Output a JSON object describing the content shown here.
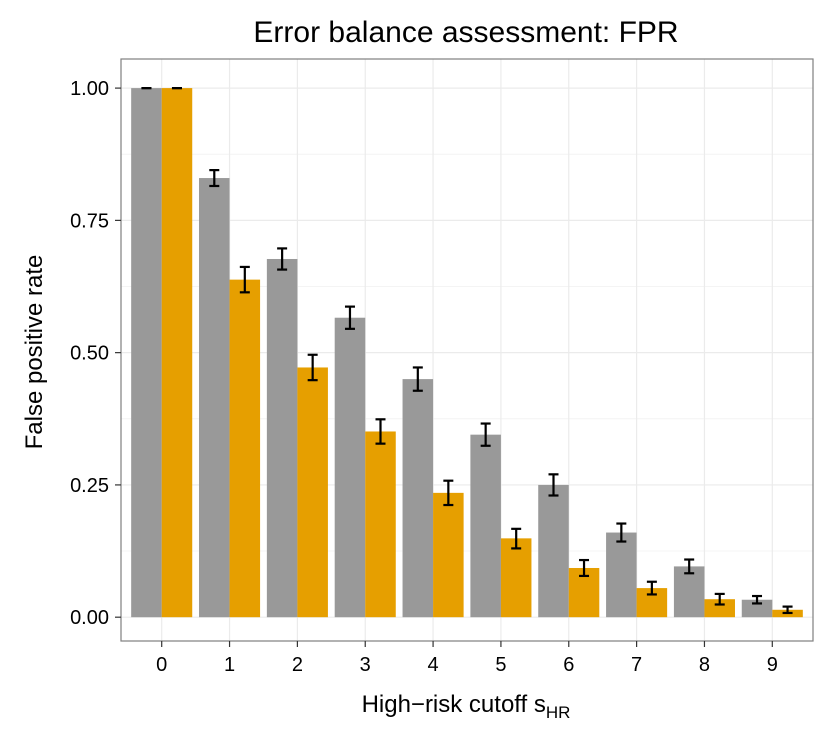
{
  "chart_data": {
    "type": "bar",
    "title": "Error balance assessment: FPR",
    "xlabel_main": "High−risk cutoff s",
    "xlabel_sub": "HR",
    "ylabel": "False positive rate",
    "categories": [
      "0",
      "1",
      "2",
      "3",
      "4",
      "5",
      "6",
      "7",
      "8",
      "9"
    ],
    "ylim": [
      -0.045,
      1.055
    ],
    "yticks": [
      0.0,
      0.25,
      0.5,
      0.75,
      1.0
    ],
    "ytick_labels": [
      "0.00",
      "0.25",
      "0.50",
      "0.75",
      "1.00"
    ],
    "grid": true,
    "legend": "none",
    "series": [
      {
        "color": "#999999",
        "values": [
          1.0,
          0.83,
          0.677,
          0.566,
          0.45,
          0.345,
          0.25,
          0.16,
          0.096,
          0.033
        ],
        "err_low": [
          1.0,
          0.815,
          0.657,
          0.545,
          0.428,
          0.324,
          0.23,
          0.143,
          0.083,
          0.026
        ],
        "err_high": [
          1.0,
          0.845,
          0.697,
          0.587,
          0.472,
          0.366,
          0.27,
          0.177,
          0.109,
          0.04
        ]
      },
      {
        "color": "#E69F00",
        "values": [
          1.0,
          0.638,
          0.472,
          0.351,
          0.235,
          0.149,
          0.093,
          0.055,
          0.034,
          0.014
        ],
        "err_low": [
          1.0,
          0.614,
          0.448,
          0.328,
          0.212,
          0.13,
          0.078,
          0.043,
          0.024,
          0.008
        ],
        "err_high": [
          1.0,
          0.662,
          0.496,
          0.374,
          0.258,
          0.167,
          0.108,
          0.067,
          0.044,
          0.02
        ]
      }
    ]
  }
}
